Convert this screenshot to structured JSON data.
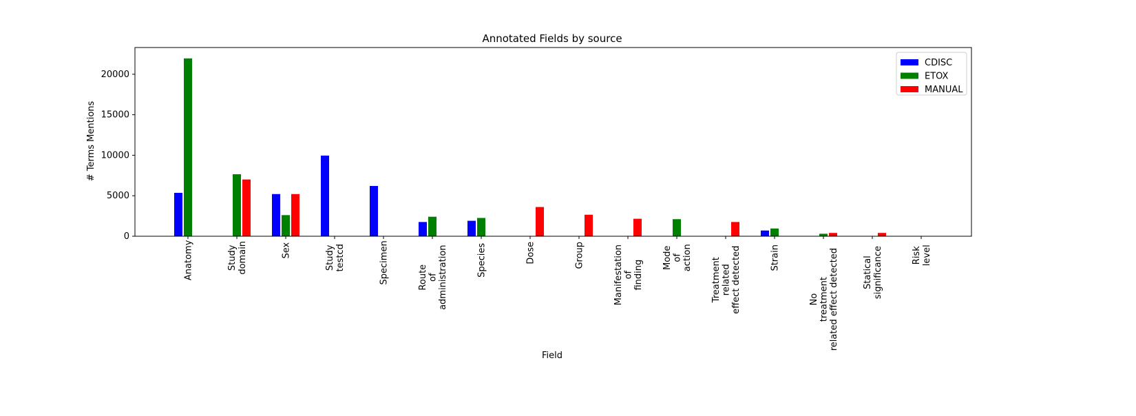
{
  "chart_data": {
    "type": "bar",
    "title": "Annotated Fields by source",
    "xlabel": "Field",
    "ylabel": "# Terms Mentions",
    "ylim": [
      0,
      23300
    ],
    "yticks": [
      0,
      5000,
      10000,
      15000,
      20000
    ],
    "grid": false,
    "legend_position": "top-right",
    "categories": [
      [
        "Anatomy"
      ],
      [
        "Study",
        "domain"
      ],
      [
        "Sex"
      ],
      [
        "Study",
        "testcd"
      ],
      [
        "Specimen"
      ],
      [
        "Route",
        "of",
        "administration"
      ],
      [
        "Species"
      ],
      [
        "Dose"
      ],
      [
        "Group"
      ],
      [
        "Manifestation",
        "of",
        "finding"
      ],
      [
        "Mode",
        "of",
        "action"
      ],
      [
        "Treatment",
        "related",
        "effect detected"
      ],
      [
        "Strain"
      ],
      [
        "No",
        "treatment",
        "related effect detected"
      ],
      [
        "Statical",
        "significance"
      ],
      [
        "Risk",
        "level"
      ]
    ],
    "series": [
      {
        "name": "CDISC",
        "color": "#0000ff",
        "values": [
          5400,
          0,
          5250,
          10000,
          6250,
          1800,
          1950,
          0,
          0,
          0,
          0,
          0,
          750,
          0,
          0,
          0
        ]
      },
      {
        "name": "ETOX",
        "color": "#008000",
        "values": [
          22000,
          7700,
          2650,
          0,
          0,
          2450,
          2300,
          0,
          0,
          0,
          2150,
          0,
          1000,
          350,
          0,
          0
        ]
      },
      {
        "name": "MANUAL",
        "color": "#ff0000",
        "values": [
          0,
          7050,
          5250,
          0,
          0,
          0,
          0,
          3650,
          2700,
          2200,
          0,
          1800,
          0,
          450,
          450,
          0
        ]
      }
    ]
  }
}
